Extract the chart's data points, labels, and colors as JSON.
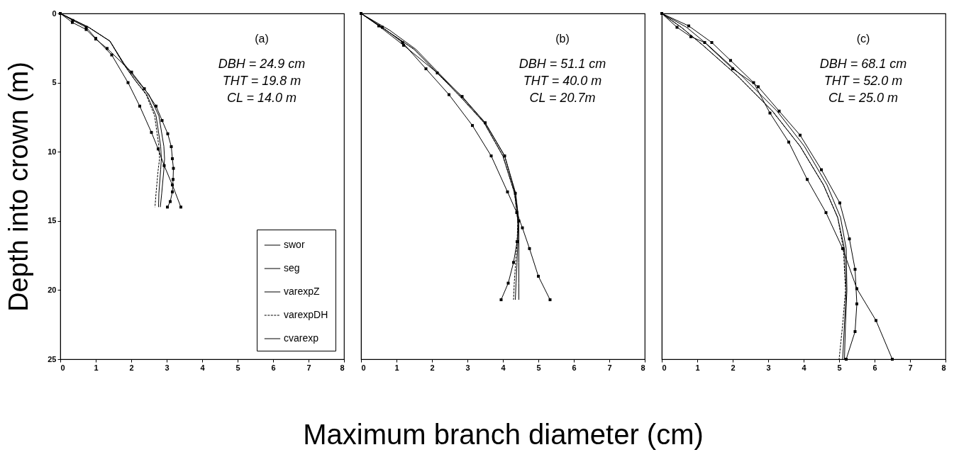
{
  "chart_data": [
    {
      "type": "line",
      "ylabel": "Depth into crown (m)",
      "xlim": [
        0,
        8
      ],
      "xticks": [
        0,
        1,
        2,
        3,
        4,
        5,
        6,
        7,
        8
      ],
      "ylim": [
        25,
        0
      ],
      "yticks": [
        0,
        5,
        10,
        15,
        20,
        25
      ],
      "grid": false,
      "legend": "bottom right",
      "annotations": [
        "(a)",
        "DBH = 24.9 cm",
        "THT = 19.8 m",
        "CL = 14.0 m"
      ],
      "series": [
        {
          "name": "swor",
          "color": "#000000",
          "marker": "square",
          "line_style": "solid",
          "x": [
            0,
            0.35,
            0.73,
            1.0,
            1.45,
            1.91,
            2.24,
            2.57,
            2.76,
            2.93,
            3.16,
            3.4
          ],
          "values": [
            0,
            0.5,
            1.0,
            1.8,
            3.0,
            5.0,
            6.7,
            8.6,
            9.8,
            11.0,
            12.4,
            14.0
          ]
        },
        {
          "name": "seg",
          "color": "#000000",
          "marker": "square",
          "line_style": "solid",
          "x": [
            0,
            0.34,
            0.73,
            1.0,
            1.32,
            2.01,
            2.37,
            2.7,
            2.87,
            3.03,
            3.13,
            3.16,
            3.19,
            3.18,
            3.16,
            3.1,
            3.02
          ],
          "values": [
            0,
            0.65,
            1.16,
            1.85,
            2.53,
            4.24,
            5.44,
            6.7,
            7.74,
            8.7,
            9.63,
            10.5,
            11.2,
            12.0,
            12.9,
            13.6,
            14.0
          ]
        },
        {
          "name": "varexpZ",
          "color": "#000000",
          "marker": "none",
          "line_style": "solid",
          "x": [
            0,
            0.8,
            1.4,
            1.78,
            2.1,
            2.44,
            2.7,
            2.83,
            2.85,
            2.83,
            2.78,
            2.77
          ],
          "values": [
            0,
            1,
            2,
            3.64,
            4.8,
            5.87,
            7.4,
            9.6,
            10.5,
            11.3,
            13.0,
            14.0
          ]
        },
        {
          "name": "varexpDH",
          "color": "#000000",
          "marker": "none",
          "line_style": "dotted",
          "x": [
            0,
            0.8,
            1.4,
            1.78,
            2.1,
            2.42,
            2.66,
            2.78,
            2.8,
            2.76,
            2.7,
            2.67
          ],
          "values": [
            0,
            1,
            2,
            3.64,
            4.8,
            5.87,
            7.4,
            9.6,
            10.5,
            11.3,
            13.0,
            14.0
          ]
        },
        {
          "name": "cvarexp",
          "color": "#000000",
          "marker": "none",
          "line_style": "solid",
          "x": [
            0,
            0.8,
            1.4,
            1.8,
            2.15,
            2.5,
            2.78,
            2.92,
            2.94,
            2.92,
            2.86,
            2.82
          ],
          "values": [
            0,
            1,
            2,
            3.64,
            4.8,
            5.87,
            7.4,
            9.6,
            10.5,
            11.3,
            13.0,
            14.0
          ]
        }
      ]
    },
    {
      "type": "line",
      "xlabel": "Maximum branch diameter (cm)",
      "xlim": [
        0,
        8
      ],
      "xticks": [
        0,
        1,
        2,
        3,
        4,
        5,
        6,
        7,
        8
      ],
      "ylim": [
        25,
        0
      ],
      "yticks": [
        0,
        5,
        10,
        15,
        20,
        25
      ],
      "grid": false,
      "tick_labels": "x",
      "annotations": [
        "(b)",
        "DBH = 51.1 cm",
        "THT = 40.0 m",
        "CL = 20.7m"
      ],
      "series": [
        {
          "color": "#000000",
          "marker": "square",
          "line_style": "solid",
          "x": [
            0,
            0.6,
            1.17,
            1.83,
            2.48,
            3.14,
            3.67,
            4.13,
            4.39,
            4.55,
            4.75,
            5.0,
            5.33
          ],
          "values": [
            0,
            1,
            2.1,
            4.0,
            5.87,
            8.1,
            10.3,
            12.9,
            14.4,
            15.5,
            17,
            19,
            20.7
          ]
        },
        {
          "color": "#000000",
          "marker": "square",
          "line_style": "solid",
          "x": [
            0,
            0.5,
            1.2,
            2.15,
            2.85,
            3.5,
            4.05,
            4.35,
            4.45,
            4.4,
            4.3,
            4.15,
            3.95
          ],
          "values": [
            0,
            0.9,
            2.3,
            4.3,
            6.0,
            7.9,
            10.3,
            13.0,
            15,
            16.5,
            18,
            19.5,
            20.7
          ]
        },
        {
          "color": "#000000",
          "marker": "none",
          "line_style": "solid",
          "x": [
            0,
            0.7,
            1.5,
            2.16,
            2.81,
            3.47,
            4.0,
            4.33,
            4.42,
            4.42,
            4.4,
            4.37,
            4.35
          ],
          "values": [
            0,
            1.2,
            2.6,
            4.33,
            6.04,
            7.9,
            10.3,
            13.0,
            15,
            16.5,
            18,
            19.5,
            20.7
          ]
        },
        {
          "color": "#000000",
          "marker": "none",
          "line_style": "dotted",
          "x": [
            0,
            0.7,
            1.5,
            2.16,
            2.81,
            3.47,
            4.0,
            4.33,
            4.42,
            4.4,
            4.36,
            4.32,
            4.3
          ],
          "values": [
            0,
            1.2,
            2.6,
            4.33,
            6.04,
            7.9,
            10.3,
            13.0,
            15,
            16.5,
            18,
            19.5,
            20.7
          ]
        },
        {
          "color": "#000000",
          "marker": "none",
          "line_style": "solid",
          "x": [
            0,
            0.8,
            1.55,
            2.2,
            2.85,
            3.5,
            4.05,
            4.36,
            4.45,
            4.45,
            4.45,
            4.45,
            4.45
          ],
          "values": [
            0,
            1.2,
            2.6,
            4.33,
            6.04,
            7.9,
            10.3,
            13.0,
            15,
            16.5,
            18,
            19.5,
            20.7
          ]
        }
      ]
    },
    {
      "type": "line",
      "xlim": [
        0,
        8
      ],
      "xticks": [
        0,
        1,
        2,
        3,
        4,
        5,
        6,
        7,
        8
      ],
      "ylim": [
        25,
        0
      ],
      "yticks": [
        0,
        5,
        10,
        15,
        20,
        25
      ],
      "grid": false,
      "tick_labels": "x",
      "annotations": [
        "(c)",
        "DBH = 68.1 cm",
        "THT = 52.0 m",
        "CL = 25.0 m"
      ],
      "series": [
        {
          "color": "#000000",
          "marker": "square",
          "line_style": "solid",
          "x": [
            0,
            0.76,
            1.41,
            1.94,
            2.59,
            3.05,
            3.58,
            4.1,
            4.63,
            5.1,
            5.5,
            6.04,
            6.5
          ],
          "values": [
            0,
            0.9,
            2.1,
            3.4,
            5.0,
            7.2,
            9.3,
            12.0,
            14.4,
            17,
            19.9,
            22.2,
            25
          ]
        },
        {
          "color": "#000000",
          "marker": "square",
          "line_style": "solid",
          "x": [
            0,
            0.43,
            0.82,
            1.21,
            2.0,
            2.72,
            3.31,
            3.9,
            4.5,
            5.02,
            5.29,
            5.45,
            5.5,
            5.45,
            5.2
          ],
          "values": [
            0,
            1.0,
            1.68,
            2.1,
            4.0,
            5.3,
            7.06,
            8.8,
            11.3,
            13.7,
            16.3,
            18.5,
            21,
            23,
            25
          ]
        },
        {
          "color": "#000000",
          "marker": "none",
          "line_style": "solid",
          "x": [
            0,
            0.55,
            1.15,
            2.13,
            3.12,
            3.9,
            4.56,
            4.96,
            5.15,
            5.2,
            5.15,
            5.1
          ],
          "values": [
            0,
            1,
            2.28,
            4.5,
            7.06,
            9.6,
            12.4,
            14.75,
            17,
            20,
            22.5,
            25
          ]
        },
        {
          "color": "#000000",
          "marker": "none",
          "line_style": "dotted",
          "x": [
            0,
            0.55,
            1.15,
            2.13,
            3.12,
            3.9,
            4.56,
            4.96,
            5.12,
            5.18,
            5.1,
            5.0
          ],
          "values": [
            0,
            1,
            2.28,
            4.5,
            7.06,
            9.6,
            12.4,
            14.75,
            17,
            20,
            22.5,
            25
          ]
        },
        {
          "color": "#000000",
          "marker": "none",
          "line_style": "solid",
          "x": [
            0,
            0.7,
            1.3,
            2.25,
            3.25,
            4.02,
            4.66,
            5.04,
            5.2,
            5.22,
            5.18,
            5.15
          ],
          "values": [
            0,
            1,
            2.28,
            4.5,
            7.06,
            9.6,
            12.4,
            14.75,
            17,
            20,
            22.5,
            25
          ]
        }
      ]
    }
  ]
}
